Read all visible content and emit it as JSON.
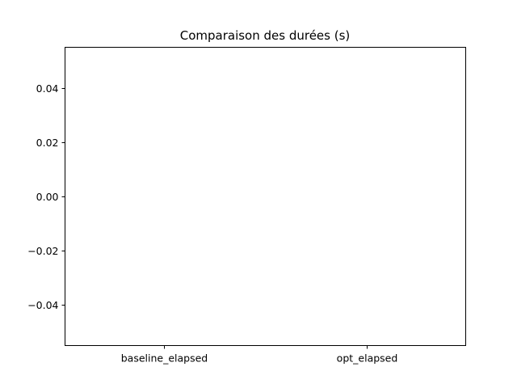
{
  "chart_data": {
    "type": "bar",
    "title": "Comparaison des durées (s)",
    "xlabel": "",
    "ylabel": "",
    "categories": [
      "baseline_elapsed",
      "opt_elapsed"
    ],
    "values": [
      0,
      0
    ],
    "ylim": [
      -0.055,
      0.055
    ],
    "yticks": [
      -0.04,
      -0.02,
      0.0,
      0.02,
      0.04
    ],
    "ytick_labels": [
      "−0.04",
      "−0.02",
      "0.00",
      "0.02",
      "0.04"
    ],
    "grid": false,
    "legend": "none"
  },
  "colors": {
    "axes": "#000000",
    "background": "#ffffff",
    "bar": "#1f77b4"
  }
}
